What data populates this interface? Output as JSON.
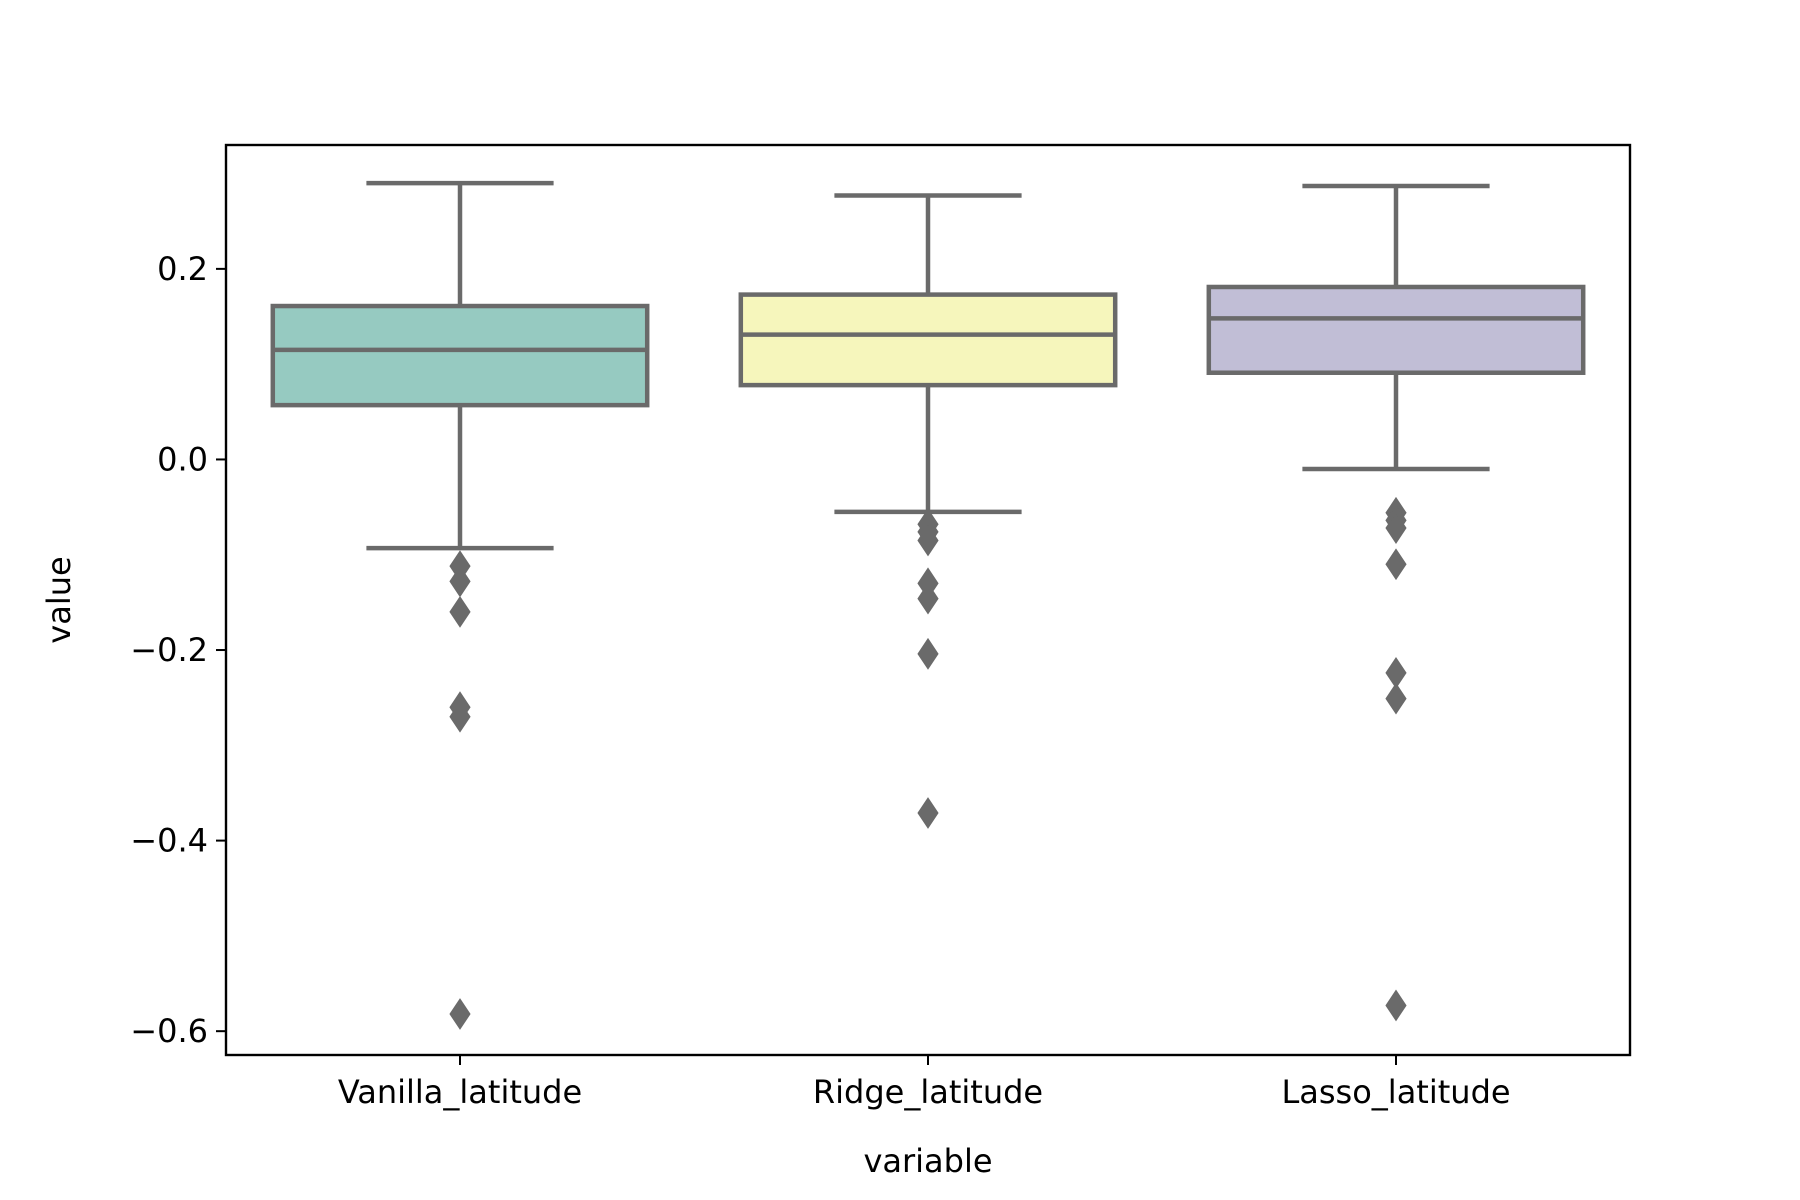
{
  "chart_data": {
    "type": "box",
    "xlabel": "variable",
    "ylabel": "value",
    "ylim": [
      -0.625,
      0.33
    ],
    "yticks": [
      -0.6,
      -0.4,
      -0.2,
      0.0,
      0.2
    ],
    "ytick_labels": [
      "−0.6",
      "−0.4",
      "−0.2",
      "0.0",
      "0.2"
    ],
    "grid": false,
    "categories": [
      "Vanilla_latitude",
      "Ridge_latitude",
      "Lasso_latitude"
    ],
    "series": [
      {
        "category": "Vanilla_latitude",
        "color": "#96cac1",
        "whisker_low": -0.093,
        "q1": 0.057,
        "median": 0.115,
        "q3": 0.161,
        "whisker_high": 0.29,
        "outliers": [
          -0.112,
          -0.128,
          -0.16,
          -0.26,
          -0.27,
          -0.582
        ]
      },
      {
        "category": "Ridge_latitude",
        "color": "#f6f6bc",
        "whisker_low": -0.055,
        "q1": 0.078,
        "median": 0.131,
        "q3": 0.173,
        "whisker_high": 0.277,
        "outliers": [
          -0.068,
          -0.076,
          -0.085,
          -0.13,
          -0.146,
          -0.204,
          -0.371
        ]
      },
      {
        "category": "Lasso_latitude",
        "color": "#c1bed6",
        "whisker_low": -0.01,
        "q1": 0.091,
        "median": 0.148,
        "q3": 0.181,
        "whisker_high": 0.287,
        "outliers": [
          -0.056,
          -0.064,
          -0.072,
          -0.11,
          -0.224,
          -0.251,
          -0.573
        ]
      }
    ],
    "line_color": "#6a6a6a"
  }
}
